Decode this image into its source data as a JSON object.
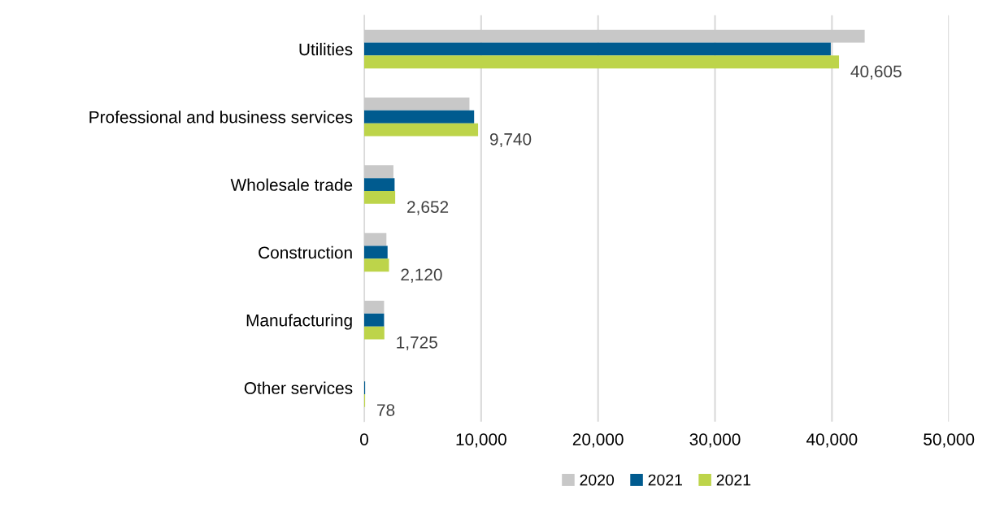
{
  "chart_data": {
    "type": "bar",
    "orientation": "horizontal",
    "categories": [
      "Utilities",
      "Professional and business services",
      "Wholesale trade",
      "Construction",
      "Manufacturing",
      "Other services"
    ],
    "series": [
      {
        "name": "2020",
        "color": "#c8c8c8",
        "values": [
          42800,
          9000,
          2500,
          1900,
          1700,
          null
        ]
      },
      {
        "name": "2021",
        "color": "#005b8f",
        "values": [
          39900,
          9400,
          2600,
          2000,
          1700,
          80
        ]
      },
      {
        "name": "2021",
        "color": "#bdd44a",
        "values": [
          40605,
          9740,
          2652,
          2120,
          1725,
          78
        ],
        "value_labels": [
          "40,605",
          "9,740",
          "2,652",
          "2,120",
          "1,725",
          "78"
        ]
      }
    ],
    "xlim": [
      0,
      50000
    ],
    "xticks": [
      0,
      {
        "value": 10000,
        "label": "10,000"
      },
      {
        "value": 20000,
        "label": "20,000"
      },
      {
        "value": 30000,
        "label": "30,000"
      },
      {
        "value": 40000,
        "label": "40,000"
      },
      {
        "value": 50000,
        "label": "50,000"
      }
    ],
    "grid": "x",
    "legend": "bottom"
  }
}
